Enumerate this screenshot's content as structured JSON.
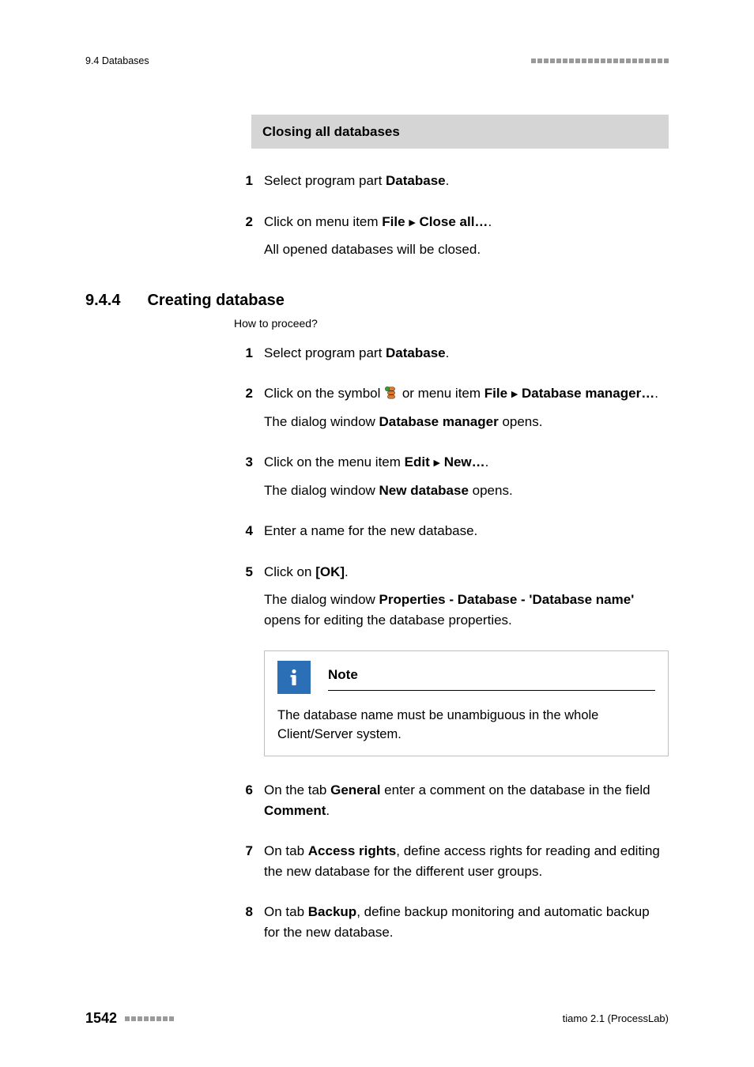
{
  "header": {
    "left": "9.4 Databases",
    "square_color": "#9a9a9a",
    "square_count": 22
  },
  "greybar1": "Closing all databases",
  "close_steps": [
    {
      "n": "1",
      "lines": [
        "Select program part <b>Database</b>."
      ]
    },
    {
      "n": "2",
      "lines": [
        "Click on menu item <b>File</b> <span class='tri'>▶</span> <b>Close all…</b>.",
        "All opened databases will be closed."
      ]
    }
  ],
  "section": {
    "num": "9.4.4",
    "title": "Creating database"
  },
  "howto": "How to proceed?",
  "create_steps": [
    {
      "n": "1",
      "lines": [
        "Select program part <b>Database</b>."
      ]
    },
    {
      "n": "2",
      "lines": [
        "Click on the symbol __ICON__ or menu item <b>File</b> <span class='tri'>▶</span> <b>Database manager…</b>.",
        "The dialog window <b>Database manager</b> opens."
      ]
    },
    {
      "n": "3",
      "lines": [
        "Click on the menu item <b>Edit</b> <span class='tri'>▶</span> <b>New…</b>.",
        "The dialog window <b>New database</b> opens."
      ]
    },
    {
      "n": "4",
      "lines": [
        "Enter a name for the new database."
      ]
    },
    {
      "n": "5",
      "lines": [
        "Click on <b>[OK]</b>.",
        "The dialog window <b>Properties - Database - 'Database name'</b> opens for editing the database properties."
      ]
    }
  ],
  "note": {
    "title": "Note",
    "body": "The database name must be unambiguous in the whole Client/Server system.",
    "icon_bg": "#2b6fb6",
    "icon_fg": "#ffffff",
    "border": "#bfbfbf"
  },
  "post_note_steps": [
    {
      "n": "6",
      "lines": [
        "On the tab <b>General</b> enter a comment on the database in the field <b>Comment</b>."
      ]
    },
    {
      "n": "7",
      "lines": [
        "On tab <b>Access rights</b>, define access rights for reading and editing the new database for the different user groups."
      ]
    },
    {
      "n": "8",
      "lines": [
        "On tab <b>Backup</b>, define backup monitoring and automatic backup for the new database."
      ]
    }
  ],
  "footer": {
    "page": "1542",
    "square_count": 8,
    "right": "tiamo 2.1 (ProcessLab)"
  },
  "icon_svg": {
    "db_tool": "database-manager-icon"
  }
}
